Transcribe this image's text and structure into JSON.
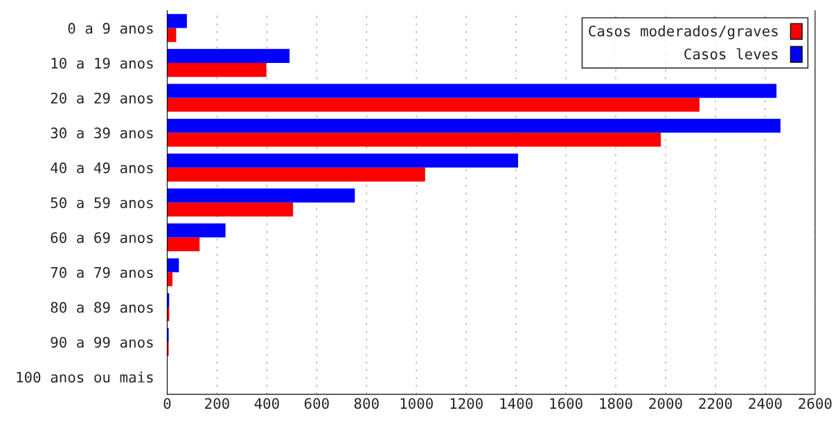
{
  "chart_data": {
    "type": "bar",
    "orientation": "horizontal",
    "categories": [
      "0 a 9 anos",
      "10 a 19 anos",
      "20 a 29 anos",
      "30 a 39 anos",
      "40 a 49 anos",
      "50 a 59 anos",
      "60 a 69 anos",
      "70 a 79 anos",
      "80 a 89 anos",
      "90 a 99 anos",
      "100 anos ou mais"
    ],
    "series": [
      {
        "name": "Casos moderados/graves",
        "color": "#ff0000",
        "values": [
          36,
          398,
          2136,
          1981,
          1035,
          505,
          130,
          21,
          8,
          6,
          0
        ]
      },
      {
        "name": "Casos leves",
        "color": "#0000ff",
        "values": [
          79,
          491,
          2445,
          2461,
          1408,
          753,
          234,
          47,
          8,
          6,
          0
        ]
      }
    ],
    "xlim": [
      0,
      2600
    ],
    "xticks": [
      0,
      200,
      400,
      600,
      800,
      1000,
      1200,
      1400,
      1600,
      1800,
      2000,
      2200,
      2400,
      2600
    ],
    "grid": "x",
    "legend": "top right"
  }
}
